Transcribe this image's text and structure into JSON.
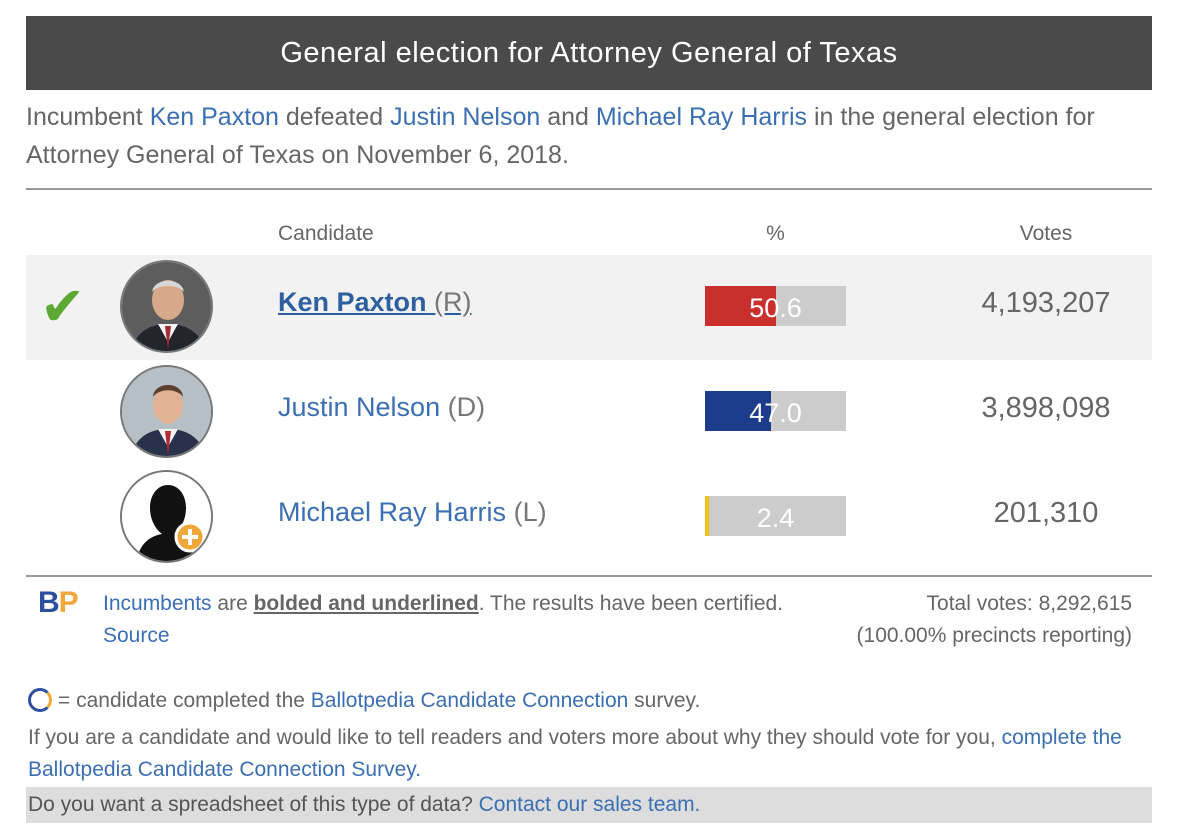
{
  "header": {
    "title": "General election for Attorney General of Texas"
  },
  "summary": {
    "w1": "Incumbent ",
    "winner": "Ken Paxton",
    "w2": " defeated ",
    "opp1": "Justin Nelson",
    "w3": " and ",
    "opp2": "Michael Ray Harris",
    "w4": " in the general election for Attorney General of Texas on November 6, 2018."
  },
  "table": {
    "col_candidate": "Candidate",
    "col_percent": "%",
    "col_votes": "Votes",
    "winner_mark": "✔",
    "rows": [
      {
        "name": "Ken Paxton",
        "party": "(R)",
        "percent": 50.6,
        "percent_label": "50.6",
        "votes": "4,193,207",
        "color": "#c9302c",
        "incumbent": true,
        "winner": true
      },
      {
        "name": "Justin Nelson",
        "party": "(D)",
        "percent": 47.0,
        "percent_label": "47.0",
        "votes": "3,898,098",
        "color": "#1e3c8c",
        "incumbent": false,
        "winner": false
      },
      {
        "name": "Michael Ray Harris",
        "party": "(L)",
        "percent": 2.4,
        "percent_label": "2.4",
        "votes": "201,310",
        "color": "#f0c419",
        "incumbent": false,
        "winner": false
      }
    ]
  },
  "footer": {
    "logo_b": "B",
    "logo_p": "P",
    "incumbents_link": "Incumbents",
    "note_1": " are ",
    "note_bold": "bolded and underlined",
    "note_2": ". The results have been certified. ",
    "source_link": "Source",
    "total_votes": "Total votes: 8,292,615",
    "precincts": "(100.00% precincts reporting)",
    "cc_prefix": "= candidate completed the ",
    "cc_link": "Ballotpedia Candidate Connection",
    "cc_suffix": " survey.",
    "cand_text": "If you are a candidate and would like to tell readers and voters more about why they should vote for you, ",
    "cand_link": "complete the Ballotpedia Candidate Connection Survey.",
    "sales_text": "Do you want a spreadsheet of this type of data? ",
    "sales_link": "Contact our sales team."
  }
}
